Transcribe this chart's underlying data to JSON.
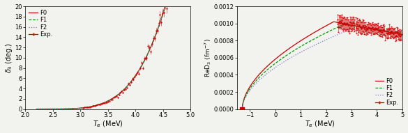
{
  "left_panel": {
    "xlabel": "T_{\\alpha} (MeV)",
    "ylabel": "\\delta_3 (deg.)",
    "xlim": [
      2.0,
      5.0
    ],
    "ylim": [
      0,
      20
    ],
    "yticks": [
      0,
      2,
      4,
      6,
      8,
      10,
      12,
      14,
      16,
      18,
      20
    ],
    "xticks": [
      2.0,
      2.5,
      3.0,
      3.5,
      4.0,
      4.5,
      5.0
    ],
    "colors": {
      "F0": "#cc0000",
      "F1": "#009900",
      "F2": "#7777cc",
      "Exp": "#cc0000"
    }
  },
  "right_panel": {
    "xlabel": "T_{\\alpha} (MeV)",
    "ylabel": "ReD_3 (fm^{-7})",
    "xlim": [
      -1.5,
      5.0
    ],
    "ylim": [
      0,
      0.0012
    ],
    "yticks": [
      0,
      0.0002,
      0.0004,
      0.0006,
      0.0008,
      0.001,
      0.0012
    ],
    "xticks": [
      -1,
      0,
      1,
      2,
      3,
      4,
      5
    ],
    "binding_energy_x": -1.3,
    "binding_energy_y": 0.0,
    "colors": {
      "F0": "#cc0000",
      "F1": "#009900",
      "F2": "#7777cc",
      "Exp": "#cc0000"
    }
  },
  "background_color": "#f2f2ee",
  "legend_fontsize": 6.0
}
